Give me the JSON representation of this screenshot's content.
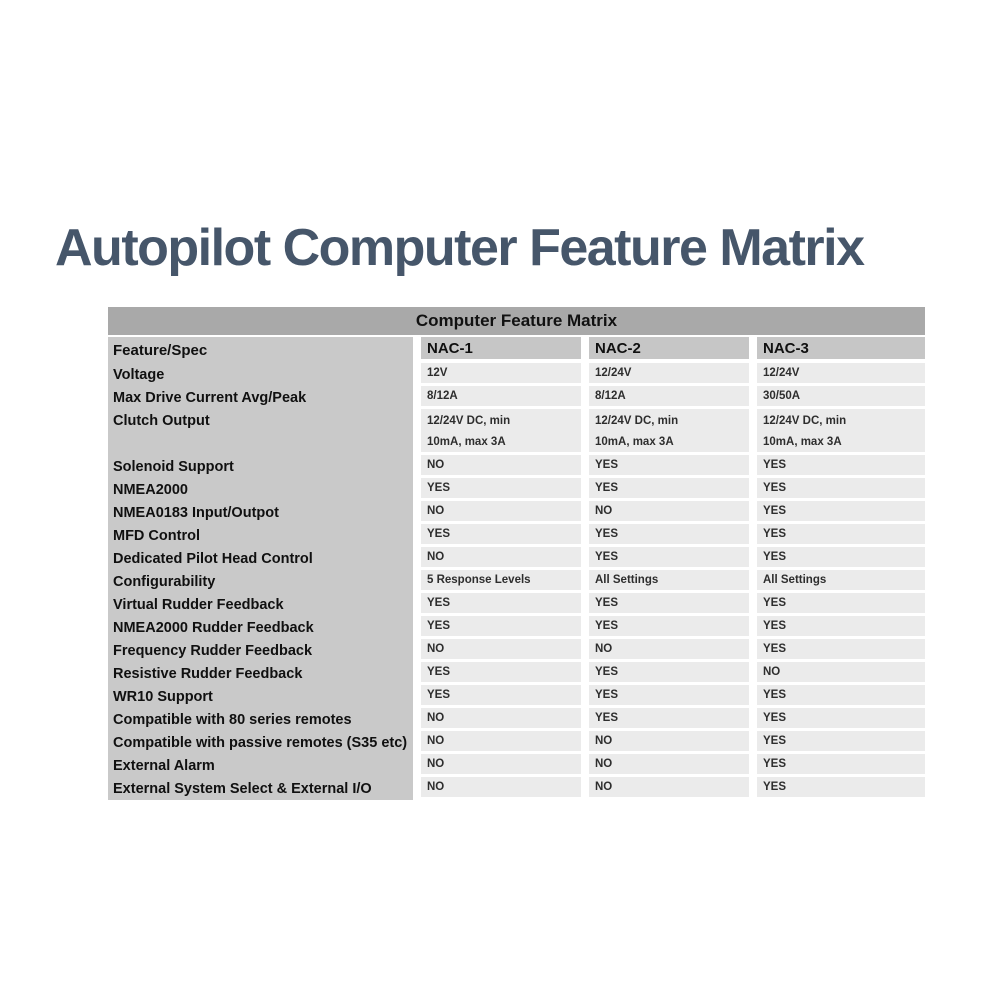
{
  "page": {
    "title": "Autopilot Computer Feature Matrix"
  },
  "table": {
    "title": "Computer Feature Matrix",
    "columns": [
      "Feature/Spec",
      "NAC-1",
      "NAC-2",
      "NAC-3"
    ],
    "rows": [
      {
        "feature": "Voltage",
        "values": [
          "12V",
          "12/24V",
          "12/24V"
        ]
      },
      {
        "feature": "Max Drive Current Avg/Peak",
        "values": [
          "8/12A",
          "8/12A",
          "30/50A"
        ]
      },
      {
        "feature": "Clutch Output",
        "tall": true,
        "values": [
          "12/24V DC, min\n10mA, max 3A",
          "12/24V DC, min\n10mA, max 3A",
          "12/24V DC, min\n10mA, max 3A"
        ]
      },
      {
        "feature": "Solenoid Support",
        "values": [
          "NO",
          "YES",
          "YES"
        ]
      },
      {
        "feature": "NMEA2000",
        "values": [
          "YES",
          "YES",
          "YES"
        ]
      },
      {
        "feature": "NMEA0183 Input/Outpot",
        "values": [
          "NO",
          "NO",
          "YES"
        ]
      },
      {
        "feature": "MFD Control",
        "values": [
          "YES",
          "YES",
          "YES"
        ]
      },
      {
        "feature": "Dedicated Pilot Head Control",
        "values": [
          "NO",
          "YES",
          "YES"
        ]
      },
      {
        "feature": "Configurability",
        "values": [
          "5 Response Levels",
          "All Settings",
          "All Settings"
        ]
      },
      {
        "feature": "Virtual Rudder Feedback",
        "values": [
          "YES",
          "YES",
          "YES"
        ]
      },
      {
        "feature": "NMEA2000 Rudder Feedback",
        "values": [
          "YES",
          "YES",
          "YES"
        ]
      },
      {
        "feature": "Frequency Rudder Feedback",
        "values": [
          "NO",
          "NO",
          "YES"
        ]
      },
      {
        "feature": "Resistive Rudder Feedback",
        "values": [
          "YES",
          "YES",
          "NO"
        ]
      },
      {
        "feature": "WR10 Support",
        "values": [
          "YES",
          "YES",
          "YES"
        ]
      },
      {
        "feature": "Compatible with 80 series remotes",
        "values": [
          "NO",
          "YES",
          "YES"
        ]
      },
      {
        "feature": "Compatible with passive remotes (S35 etc)",
        "values": [
          "NO",
          "NO",
          "YES"
        ]
      },
      {
        "feature": "External Alarm",
        "values": [
          "NO",
          "NO",
          "YES"
        ]
      },
      {
        "feature": "External System Select & External I/O",
        "values": [
          "NO",
          "NO",
          "YES"
        ]
      }
    ],
    "colors": {
      "title_text": "#46566a",
      "band_bg": "#a9a9a9",
      "column_header_bg": "#c6c6c6",
      "feature_column_bg": "#c9c9c9",
      "data_cell_bg": "#ebebeb"
    }
  }
}
